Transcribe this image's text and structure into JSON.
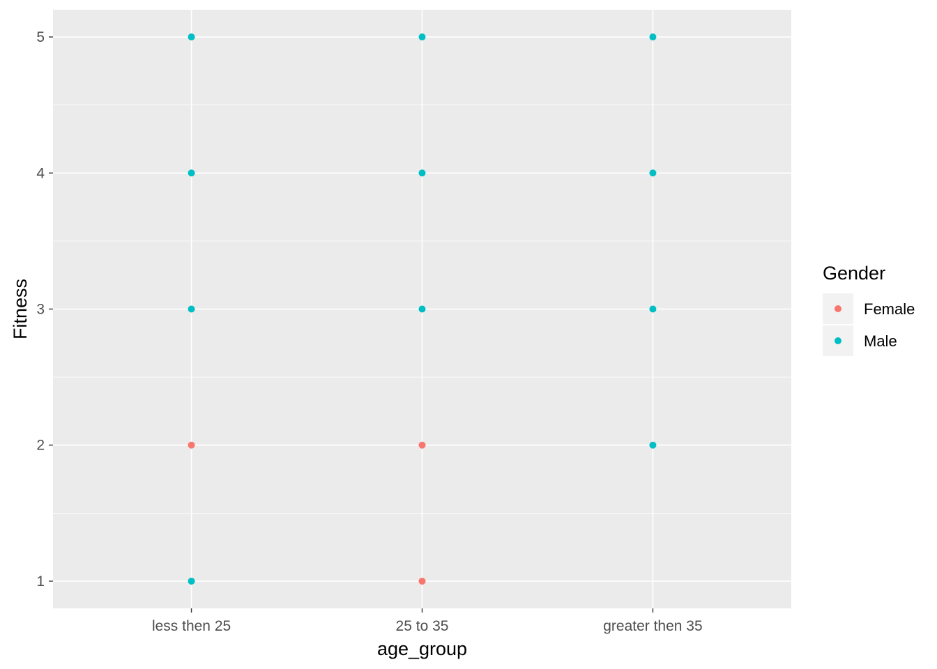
{
  "chart_data": {
    "type": "scatter",
    "title": "",
    "xlabel": "age_group",
    "ylabel": "Fitness",
    "categories": [
      "less then 25",
      "25 to 35",
      "greater then 35"
    ],
    "y_ticks": [
      "1",
      "2",
      "3",
      "4",
      "5"
    ],
    "ylim": [
      0.8,
      5.2
    ],
    "grid": true,
    "legend": {
      "title": "Gender",
      "placement": "right",
      "entries": [
        {
          "label": "Female",
          "color": "#F8766D"
        },
        {
          "label": "Male",
          "color": "#00BFC4"
        }
      ]
    },
    "series": [
      {
        "name": "Female",
        "color": "#F8766D",
        "points": [
          {
            "x": "less then 25",
            "y": 2
          },
          {
            "x": "25 to 35",
            "y": 2
          },
          {
            "x": "25 to 35",
            "y": 1
          }
        ]
      },
      {
        "name": "Male",
        "color": "#00BFC4",
        "points": [
          {
            "x": "less then 25",
            "y": 5
          },
          {
            "x": "less then 25",
            "y": 4
          },
          {
            "x": "less then 25",
            "y": 3
          },
          {
            "x": "less then 25",
            "y": 1
          },
          {
            "x": "25 to 35",
            "y": 5
          },
          {
            "x": "25 to 35",
            "y": 4
          },
          {
            "x": "25 to 35",
            "y": 3
          },
          {
            "x": "greater then 35",
            "y": 5
          },
          {
            "x": "greater then 35",
            "y": 4
          },
          {
            "x": "greater then 35",
            "y": 3
          },
          {
            "x": "greater then 35",
            "y": 2
          }
        ]
      }
    ]
  }
}
